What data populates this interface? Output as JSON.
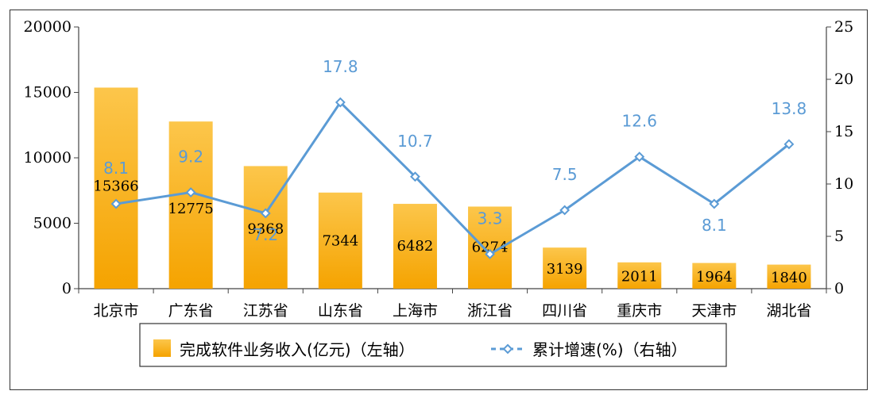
{
  "chart_data": {
    "type": "bar",
    "categories": [
      "北京市",
      "广东省",
      "江苏省",
      "山东省",
      "上海市",
      "浙江省",
      "四川省",
      "重庆市",
      "天津市",
      "湖北省"
    ],
    "series": [
      {
        "name": "完成软件业务收入(亿元)（左轴）",
        "type": "bar",
        "axis": "left",
        "values": [
          15366,
          12775,
          9368,
          7344,
          6482,
          6274,
          3139,
          2011,
          1964,
          1840
        ],
        "labels": [
          "15366",
          "12775",
          "9368",
          "7344",
          "6482",
          "6274",
          "3139",
          "2011",
          "1964",
          "1840"
        ]
      },
      {
        "name": "累计增速(%)（右轴）",
        "type": "line",
        "axis": "right",
        "values": [
          8.1,
          9.2,
          7.2,
          17.8,
          10.7,
          3.3,
          7.5,
          12.6,
          8.1,
          13.8
        ],
        "labels": [
          "8.1",
          "9.2",
          "7.2",
          "17.8",
          "10.7",
          "3.3",
          "7.5",
          "12.6",
          "8.1",
          "13.8"
        ]
      }
    ],
    "left_axis": {
      "ylim": [
        0,
        20000
      ],
      "ticks": [
        "0",
        "5000",
        "10000",
        "15000",
        "20000"
      ]
    },
    "right_axis": {
      "ylim": [
        0,
        25
      ],
      "ticks": [
        "0",
        "5",
        "10",
        "15",
        "20",
        "25"
      ]
    },
    "legend_position": "bottom",
    "grid": false,
    "colors": {
      "bar": "#f5a300",
      "bar_light": "#fcc64b",
      "line": "#5b9bd5",
      "marker_fill": "#ffffff",
      "axis": "#333333"
    }
  }
}
